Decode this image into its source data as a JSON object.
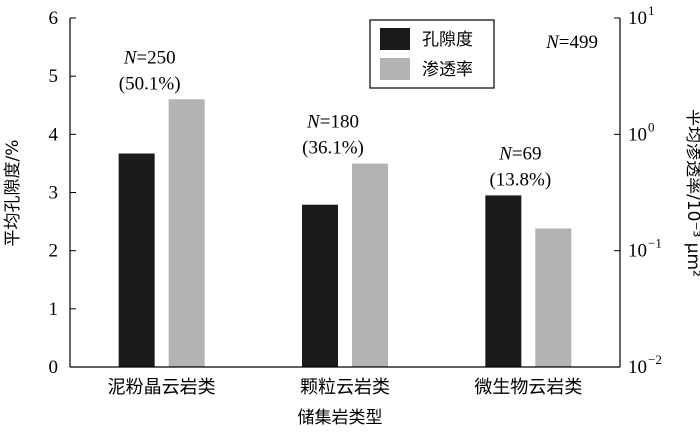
{
  "chart_data": {
    "type": "bar",
    "categories": [
      "泥粉晶云岩类",
      "颗粒云岩类",
      "微生物云岩类"
    ],
    "series": [
      {
        "name": "孔隙度",
        "axis": "left",
        "values": [
          3.67,
          2.79,
          2.95
        ],
        "color": "#1a1a1a"
      },
      {
        "name": "渗透率",
        "axis": "right",
        "values": [
          2.0,
          0.56,
          0.155
        ],
        "color": "#b4b2b4"
      }
    ],
    "xlabel": "储集岩类型",
    "ylabel": "平均孔隙度/%",
    "ylabel_right": "平均渗透率/10⁻³ μm²",
    "ylim": [
      0,
      6
    ],
    "yticks": [
      "0",
      "1",
      "2",
      "3",
      "4",
      "5",
      "6"
    ],
    "ylim_right": [
      0.01,
      10
    ],
    "yscale_right": "log",
    "yticks_right": [
      {
        "base": "10",
        "exp": "−2"
      },
      {
        "base": "10",
        "exp": "−1"
      },
      {
        "base": "10",
        "exp": "0"
      },
      {
        "base": "10",
        "exp": "1"
      }
    ],
    "annotations": [
      {
        "n_symbol": "N",
        "n_value": "250",
        "pct": "(50.1%)"
      },
      {
        "n_symbol": "N",
        "n_value": "180",
        "pct": "(36.1%)"
      },
      {
        "n_symbol": "N",
        "n_value": "69",
        "pct": "(13.8%)"
      }
    ],
    "total_annotation": {
      "n_symbol": "N",
      "n_value": "499"
    },
    "legend_position": "top-center"
  }
}
